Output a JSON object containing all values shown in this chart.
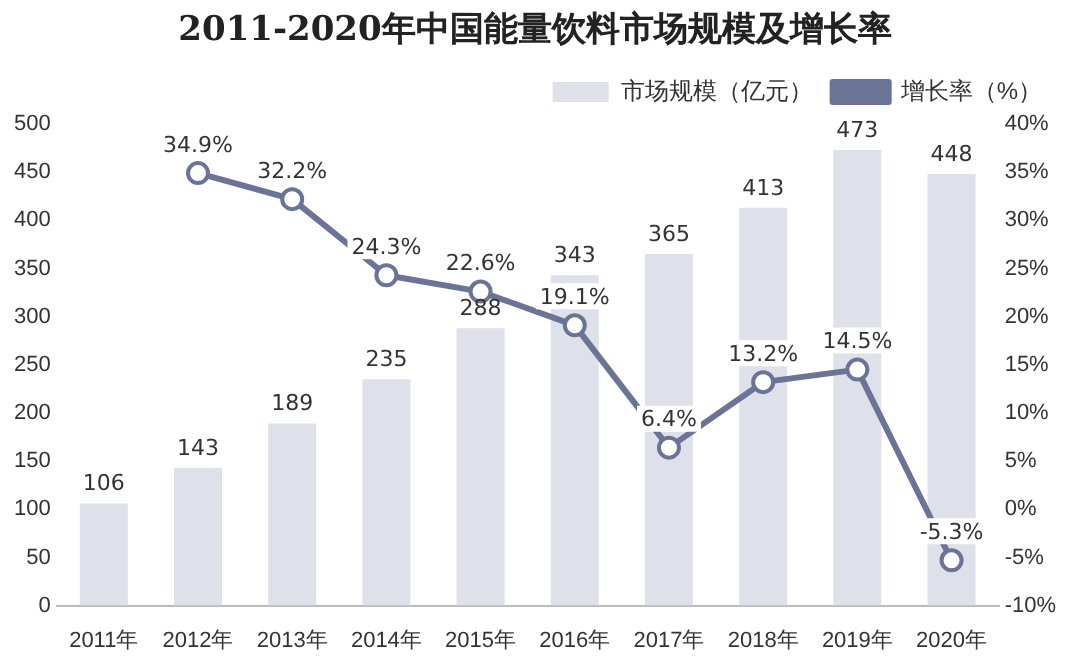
{
  "chart_data": {
    "type": "bar",
    "title": "2011-2020年中国能量饮料市场规模及增长率",
    "categories": [
      "2011年",
      "2012年",
      "2013年",
      "2014年",
      "2015年",
      "2016年",
      "2017年",
      "2018年",
      "2019年",
      "2020年"
    ],
    "series": [
      {
        "name": "市场规模（亿元）",
        "color": "#dfe1ea",
        "values": [
          106,
          143,
          189,
          235,
          288,
          343,
          365,
          413,
          473,
          448
        ],
        "value_labels": [
          "106",
          "143",
          "189",
          "235",
          "288",
          "343",
          "365",
          "413",
          "473",
          "448"
        ]
      },
      {
        "name": "增长率（%）",
        "type": "line",
        "axis": "y2",
        "color": "#6b7396",
        "marker": "circle",
        "values": [
          null,
          34.9,
          32.2,
          24.3,
          22.6,
          19.1,
          6.4,
          13.2,
          14.5,
          -5.3
        ],
        "value_labels": [
          null,
          "34.9%",
          "32.2%",
          "24.3%",
          "22.6%",
          "19.1%",
          "6.4%",
          "13.2%",
          "14.5%",
          "-5.3%"
        ]
      }
    ],
    "ylim": [
      0,
      500
    ],
    "yticks": [
      0,
      50,
      100,
      150,
      200,
      250,
      300,
      350,
      400,
      450,
      500
    ],
    "y2lim": [
      -10,
      40
    ],
    "y2ticks": [
      {
        "value": -10,
        "label": "-10%"
      },
      {
        "value": -5,
        "label": "-5%"
      },
      {
        "value": 0,
        "label": "0%"
      },
      {
        "value": 5,
        "label": "5%"
      },
      {
        "value": 10,
        "label": "10%"
      },
      {
        "value": 15,
        "label": "15%"
      },
      {
        "value": 20,
        "label": "20%"
      },
      {
        "value": 25,
        "label": "25%"
      },
      {
        "value": 30,
        "label": "30%"
      },
      {
        "value": 35,
        "label": "35%"
      },
      {
        "value": 40,
        "label": "40%"
      }
    ],
    "legend": "top right",
    "grid": false
  }
}
